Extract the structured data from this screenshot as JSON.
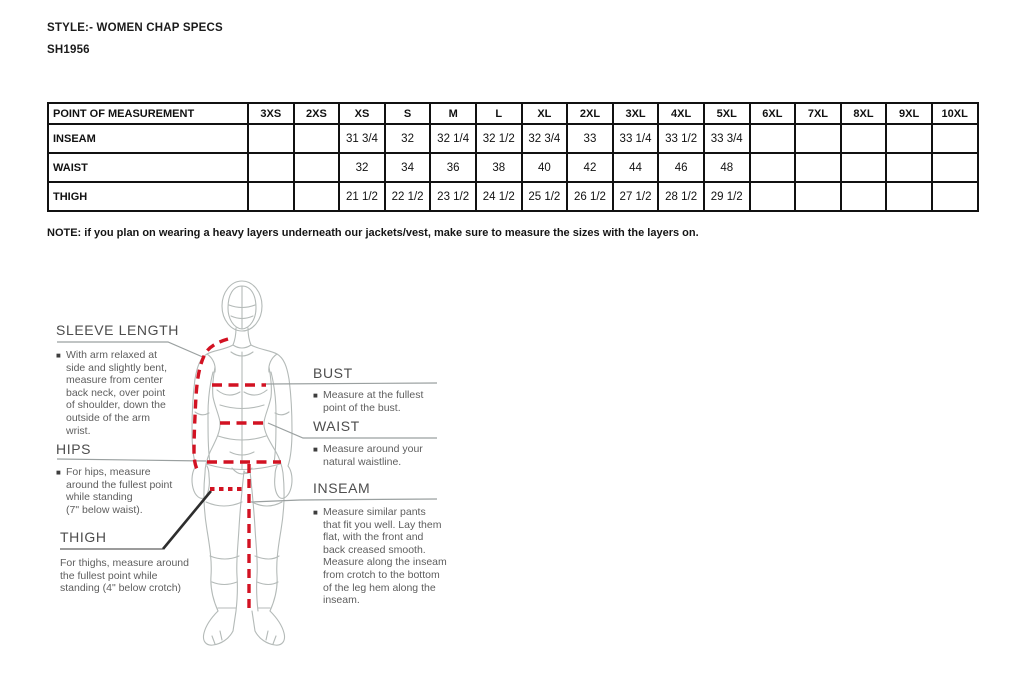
{
  "header": {
    "style_line": "STYLE:- WOMEN CHAP SPECS",
    "style_number": "SH1956"
  },
  "size_table": {
    "columns": [
      "POINT OF MEASUREMENT",
      "3XS",
      "2XS",
      "XS",
      "S",
      "M",
      "L",
      "XL",
      "2XL",
      "3XL",
      "4XL",
      "5XL",
      "6XL",
      "7XL",
      "8XL",
      "9XL",
      "10XL"
    ],
    "rows": [
      {
        "label": "INSEAM",
        "values": [
          "",
          "",
          "31 3/4",
          "32",
          "32 1/4",
          "32 1/2",
          "32 3/4",
          "33",
          "33 1/4",
          "33 1/2",
          "33 3/4",
          "",
          "",
          "",
          "",
          ""
        ]
      },
      {
        "label": "WAIST",
        "values": [
          "",
          "",
          "32",
          "34",
          "36",
          "38",
          "40",
          "42",
          "44",
          "46",
          "48",
          "",
          "",
          "",
          "",
          ""
        ]
      },
      {
        "label": "THIGH",
        "values": [
          "",
          "",
          "21 1/2",
          "22 1/2",
          "23 1/2",
          "24 1/2",
          "25 1/2",
          "26 1/2",
          "27 1/2",
          "28 1/2",
          "29 1/2",
          "",
          "",
          "",
          "",
          ""
        ]
      }
    ]
  },
  "note": "NOTE: if you plan on wearing a heavy layers underneath our jackets/vest, make sure to measure the sizes with the layers on.",
  "measurement_guide": {
    "sleeve_length": {
      "heading": "SLEEVE LENGTH",
      "bullet": "■",
      "text": "With arm relaxed at\nside and slightly bent,\nmeasure from center\nback neck, over point\nof shoulder, down the\noutside of the arm\nwrist."
    },
    "hips": {
      "heading": "HIPS",
      "bullet": "■",
      "text": "For hips, measure\naround the fullest point\nwhile standing\n(7\" below waist)."
    },
    "thigh": {
      "heading": "THIGH",
      "text": "For thighs, measure around\nthe fullest point while\nstanding (4\" below crotch)"
    },
    "bust": {
      "heading": "BUST",
      "bullet": "■",
      "text": "Measure at the fullest\npoint of the bust."
    },
    "waist": {
      "heading": "WAIST",
      "bullet": "■",
      "text": "Measure around your\nnatural waistline."
    },
    "inseam": {
      "heading": "INSEAM",
      "bullet": "■",
      "text": "Measure similar pants\nthat fit you well. Lay them\nflat, with the front and\nback creased smooth.\nMeasure along the inseam\nfrom crotch to the bottom\nof the leg hem along the\ninseam."
    }
  },
  "colors": {
    "measure_line_red": "#d21222",
    "figure_wireframe_gray": "#b4bab8",
    "leader_gray": "#9aa0a0",
    "thigh_leader_black": "#2e2e2e",
    "text_black": "#1a1a1a",
    "guide_text_gray": "#5e5e5e"
  }
}
